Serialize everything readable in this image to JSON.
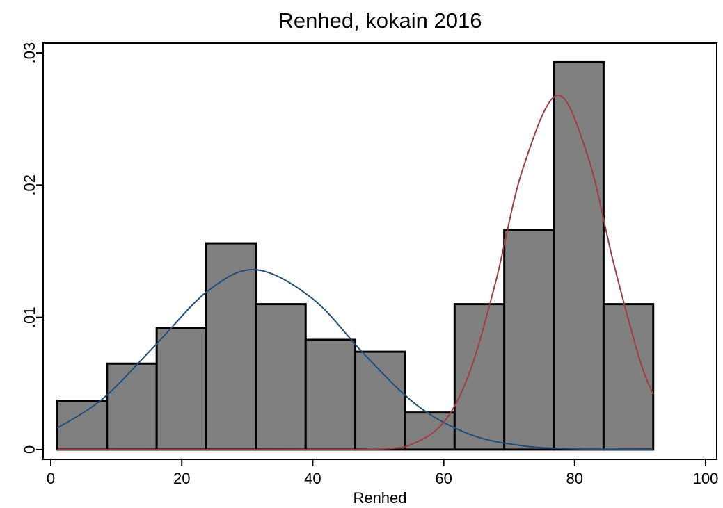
{
  "chart_data": {
    "type": "histogram",
    "title": "Renhed, kokain 2016",
    "x_label": "Renhed",
    "bins": [
      1,
      8.58,
      16.17,
      23.75,
      31.33,
      38.92,
      46.5,
      54.08,
      61.67,
      69.25,
      76.83,
      84.42,
      92
    ],
    "values": [
      0.0037,
      0.0065,
      0.0092,
      0.0156,
      0.011,
      0.0083,
      0.0074,
      0.0028,
      0.011,
      0.0166,
      0.0293,
      0.011
    ],
    "color": "#808080",
    "curves": [
      {
        "color": "#1f4e79",
        "x": [
          1,
          8,
          16,
          24,
          31.3,
          40,
          48,
          56,
          64,
          72,
          80,
          92
        ],
        "values": [
          0.00163,
          0.00387,
          0.00791,
          0.012,
          0.0136,
          0.0114,
          0.00714,
          0.00332,
          0.00115,
          0.00029,
          6e-05,
          0
        ]
      },
      {
        "color": "#a03c46",
        "x": [
          1,
          40,
          50,
          55,
          60,
          64,
          68,
          72,
          77.3,
          82,
          86,
          90,
          92
        ],
        "values": [
          0,
          0,
          5e-05,
          0.00038,
          0.00206,
          0.0059,
          0.0128,
          0.0211,
          0.0268,
          0.0222,
          0.014,
          0.0067,
          0.0042
        ]
      }
    ],
    "xlim": [
      -1.17,
      101.7
    ],
    "ylim": [
      -0.00074,
      0.03074
    ],
    "xticks": [
      0,
      20,
      40,
      60,
      80,
      100
    ],
    "yticks": [
      0,
      {
        "value": 0.01,
        "label": ".01"
      },
      {
        "value": 0.02,
        "label": ".02"
      },
      {
        "value": 0.03,
        "label": ".03"
      }
    ]
  }
}
